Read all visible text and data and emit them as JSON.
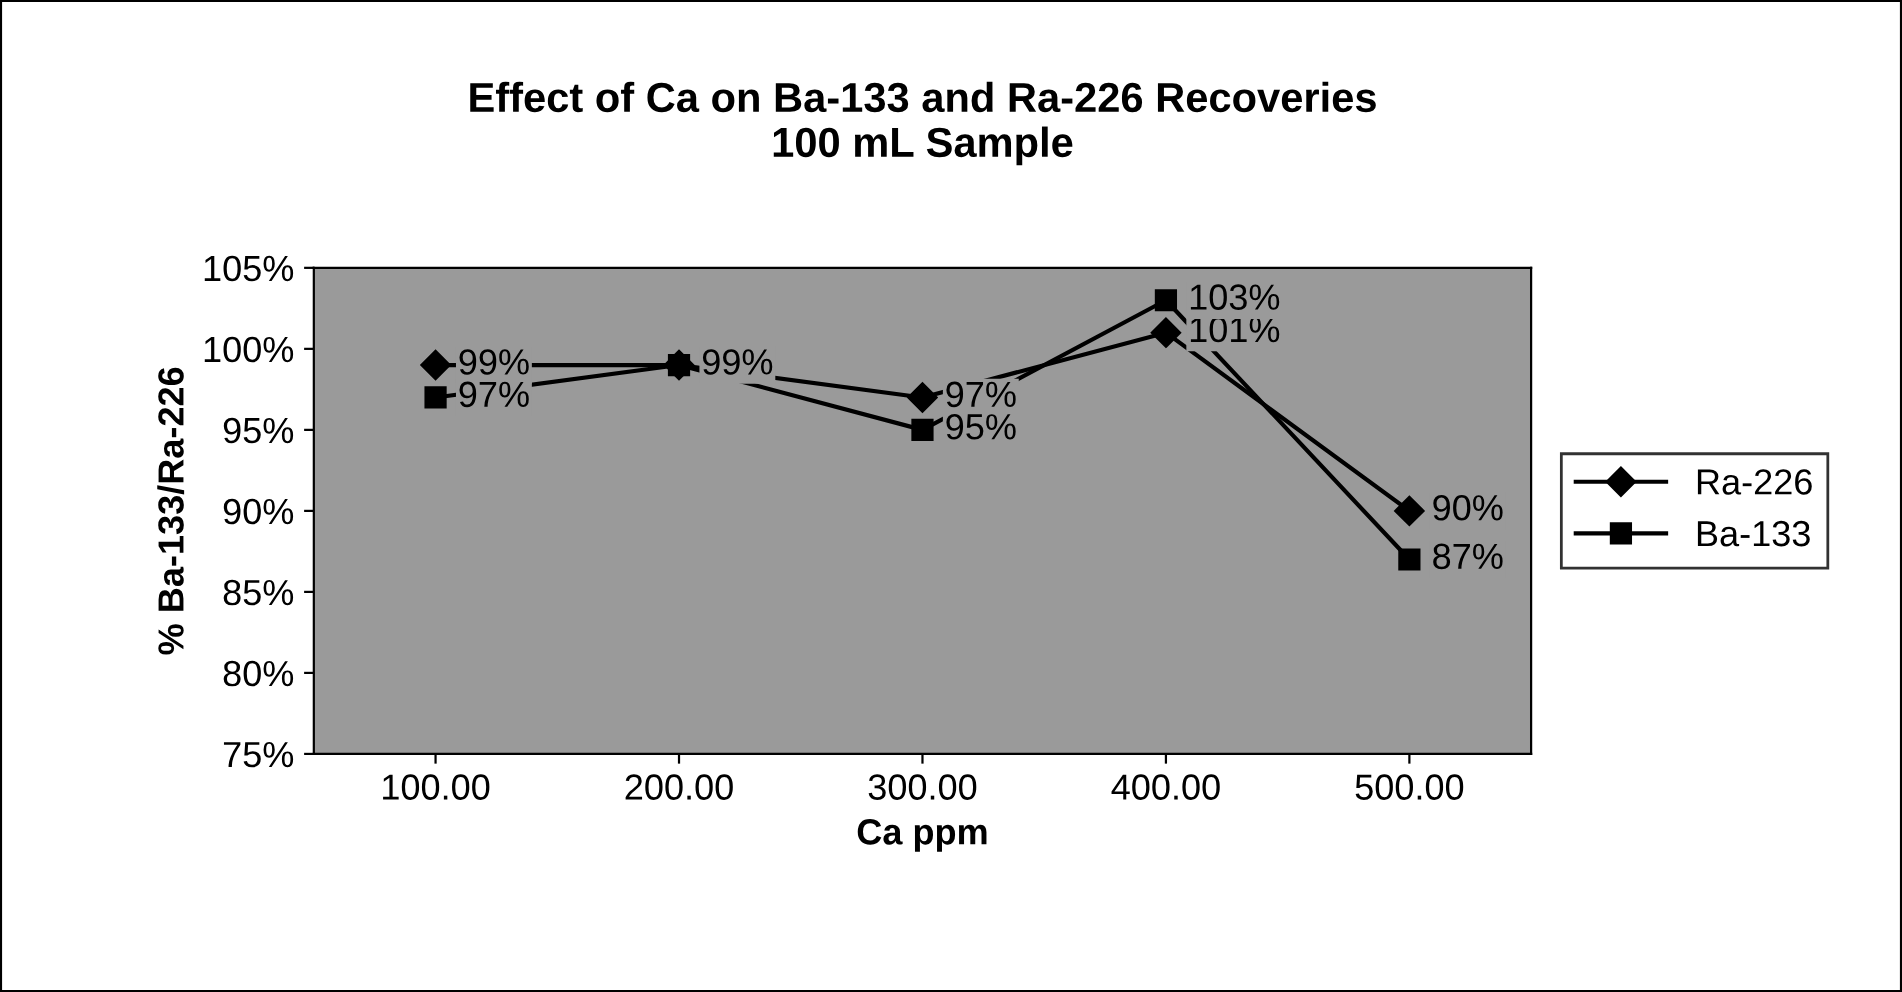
{
  "chart_data": {
    "type": "line",
    "title": "Effect of Ca on Ba-133 and Ra-226 Recoveries\n100 mL Sample",
    "xlabel": "Ca ppm",
    "ylabel": "% Ba-133/Ra-226",
    "categories": [
      "100.00",
      "200.00",
      "300.00",
      "400.00",
      "500.00"
    ],
    "series": [
      {
        "name": "Ra-226",
        "color": "#000000",
        "marker": "diamond",
        "values": [
          99,
          99,
          97,
          101,
          90
        ],
        "value_labels": [
          "99%",
          null,
          "97%",
          "101%",
          "90%"
        ]
      },
      {
        "name": "Ba-133",
        "color": "#000000",
        "marker": "square",
        "values": [
          97,
          99,
          95,
          103,
          87
        ],
        "value_labels": [
          "97%",
          "99%",
          "95%",
          "103%",
          "87%"
        ]
      }
    ],
    "ylim": [
      75,
      105
    ],
    "yticks": [
      {
        "value": 75,
        "label": "75%"
      },
      {
        "value": 80,
        "label": "80%"
      },
      {
        "value": 85,
        "label": "85%"
      },
      {
        "value": 90,
        "label": "90%"
      },
      {
        "value": 95,
        "label": "95%"
      },
      {
        "value": 100,
        "label": "100%"
      },
      {
        "value": 105,
        "label": "105%"
      }
    ],
    "grid": false,
    "legend": "right",
    "line_style": "solid"
  }
}
